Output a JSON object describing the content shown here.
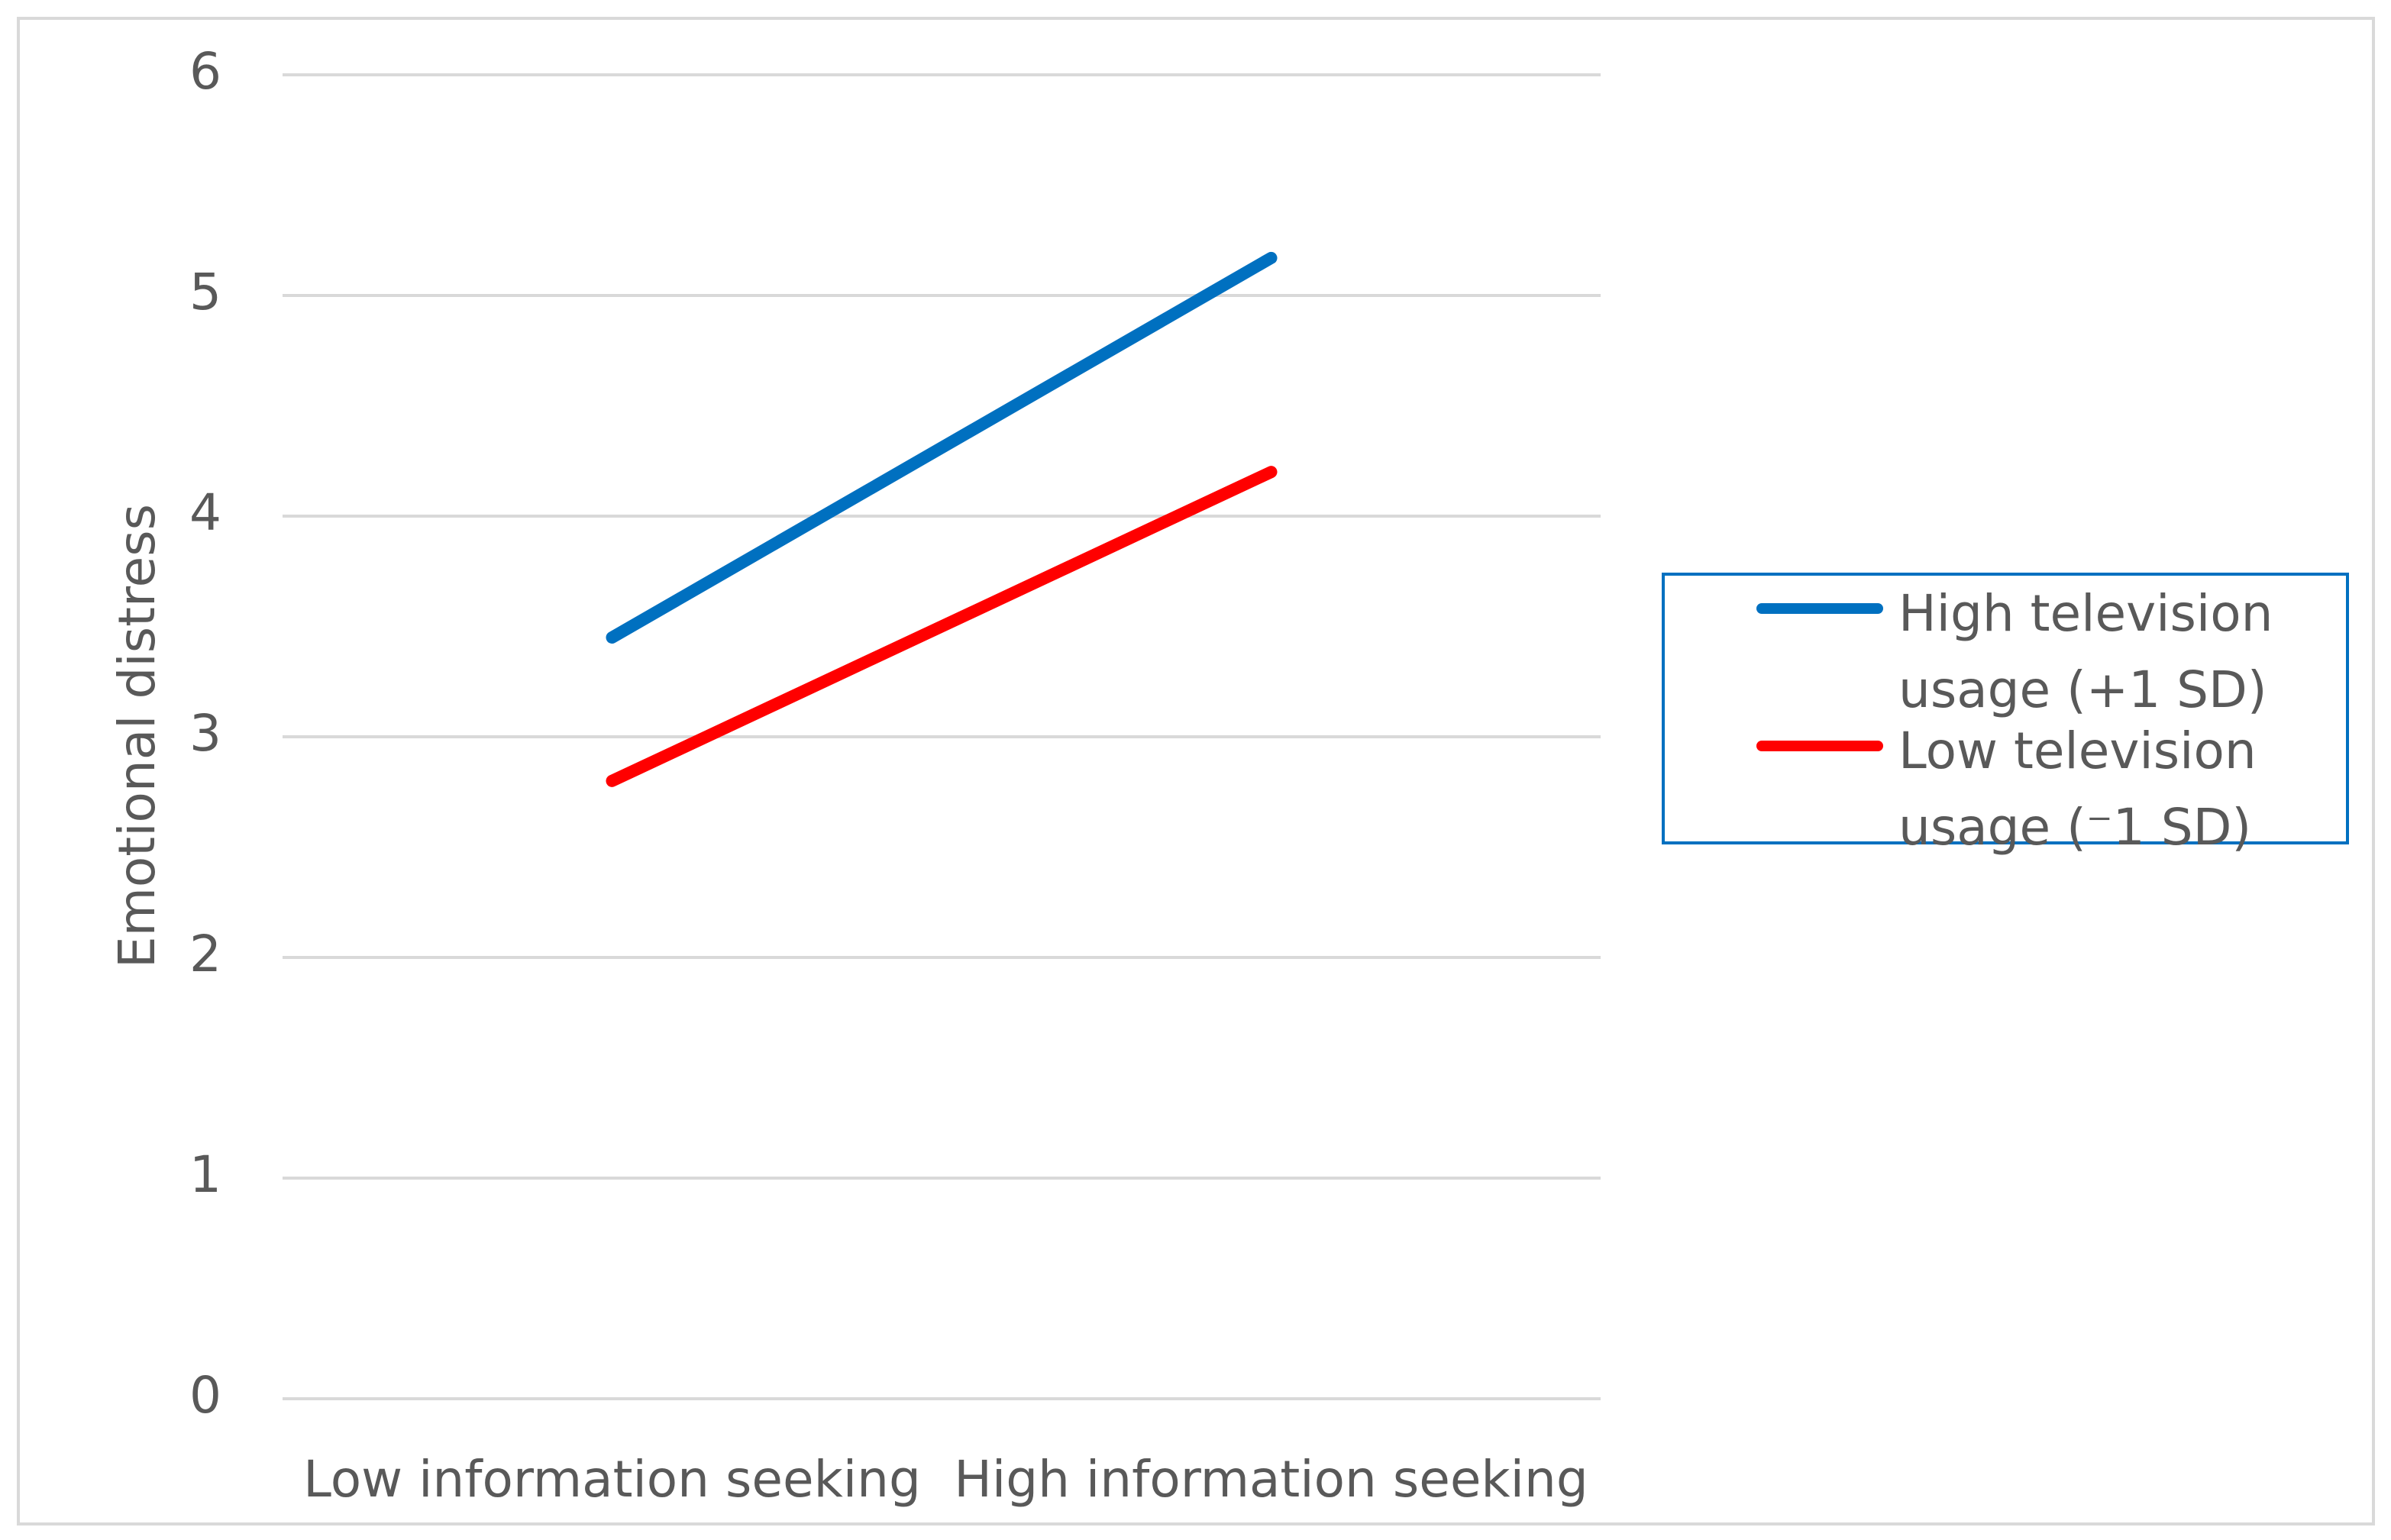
{
  "chart_data": {
    "type": "line",
    "y_label": "Emotional distress",
    "categories": [
      "Low information seeking",
      "High information seeking"
    ],
    "series": [
      {
        "name": "High television usage (+1 SD)",
        "color": "#0070c0",
        "values": [
          3.45,
          5.17
        ]
      },
      {
        "name": "Low television usage (⁻1 SD)",
        "color": "#ff0000",
        "values": [
          2.8,
          4.2
        ]
      }
    ],
    "ylim": [
      0,
      6
    ],
    "yticks": [
      0,
      1,
      2,
      3,
      4,
      5,
      6
    ],
    "grid": true,
    "legend": "right"
  }
}
